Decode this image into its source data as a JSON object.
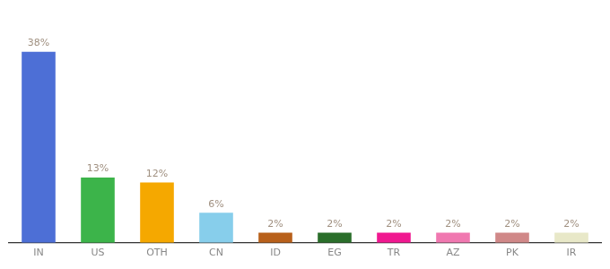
{
  "chart_data": {
    "type": "bar",
    "categories": [
      "IN",
      "US",
      "OTH",
      "CN",
      "ID",
      "EG",
      "TR",
      "AZ",
      "PK",
      "IR"
    ],
    "values": [
      38,
      13,
      12,
      6,
      2,
      2,
      2,
      2,
      2,
      2
    ],
    "value_labels": [
      "38%",
      "13%",
      "12%",
      "6%",
      "2%",
      "2%",
      "2%",
      "2%",
      "2%",
      "2%"
    ],
    "colors": [
      "#4d6fd6",
      "#3cb44a",
      "#f5a800",
      "#87ceeb",
      "#b8601a",
      "#2a6e2a",
      "#f01890",
      "#f078b0",
      "#d08888",
      "#e8e8c8"
    ],
    "ylim": [
      0,
      44
    ],
    "grid": false,
    "data_labels": true,
    "tick_labels": "x"
  }
}
